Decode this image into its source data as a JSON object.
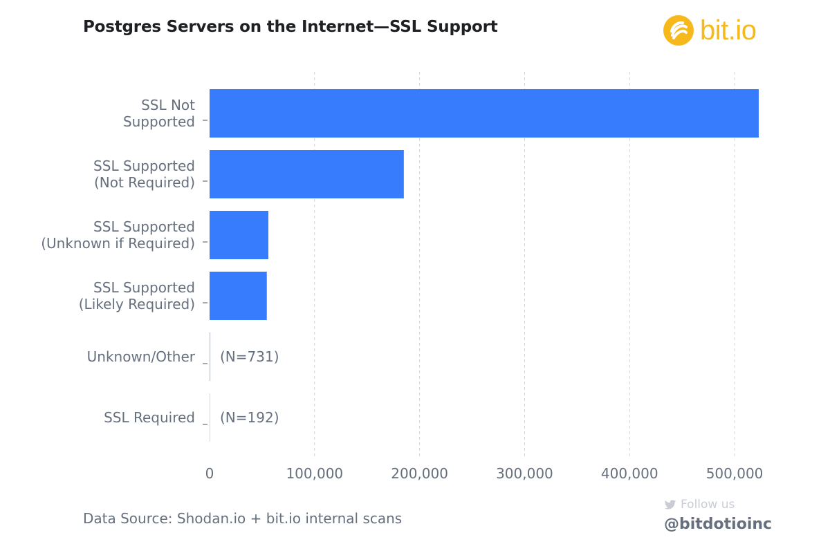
{
  "title": "Postgres Servers on the Internet—SSL Support",
  "brand": {
    "name": "bit.io",
    "color": "#f6b81a"
  },
  "source": "Data Source: Shodan.io + bit.io internal scans",
  "social": {
    "follow_label": "Follow us",
    "handle": "@bitdotioinc",
    "icon": "twitter-icon"
  },
  "colors": {
    "bar": "#377cfc",
    "grid": "#cfd3d9",
    "axis_text": "#666f7d",
    "title": "#1f2024"
  },
  "chart_data": {
    "type": "bar",
    "orientation": "horizontal",
    "categories": [
      "SSL Not\nSupported",
      "SSL Supported\n(Not Required)",
      "SSL Supported\n(Unknown if Required)",
      "SSL Supported\n(Likely Required)",
      "Unknown/Other",
      "SSL Required"
    ],
    "values": [
      523000,
      185000,
      56000,
      54500,
      731,
      192
    ],
    "annotations": [
      "",
      "",
      "",
      "",
      "(N=731)",
      "(N=192)"
    ],
    "xlim": [
      0,
      525000
    ],
    "xticks": [
      0,
      100000,
      200000,
      300000,
      400000,
      500000
    ],
    "xtick_labels": [
      "0",
      "100,000",
      "200,000",
      "300,000",
      "400,000",
      "500,000"
    ],
    "grid": "vertical dashed"
  }
}
